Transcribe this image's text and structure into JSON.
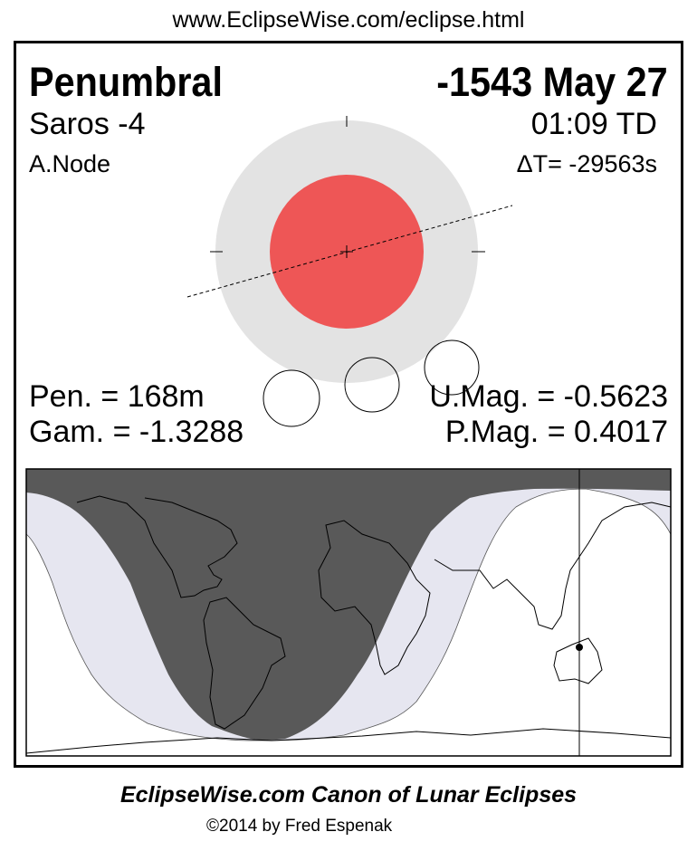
{
  "header_url": "www.EclipseWise.com/eclipse.html",
  "eclipse": {
    "type": "Penumbral",
    "date": "-1543 May 27",
    "saros": "Saros  -4",
    "time": "01:09 TD",
    "node": "A.Node",
    "delta_t": "ΔT= -29563s",
    "penumbral_duration": "Pen. = 168m",
    "gamma": "Gam. = -1.3288",
    "umbral_magnitude": "U.Mag. = -0.5623",
    "penumbral_magnitude": "P.Mag. = 0.4017"
  },
  "colors": {
    "penumbra": "#e3e3e3",
    "umbra": "#ee5656",
    "map_night": "#595959",
    "map_penumbral": "#e6e6f0"
  },
  "footer": {
    "title": "EclipseWise.com Canon of Lunar Eclipses",
    "copyright": "©2014 by Fred Espenak"
  }
}
